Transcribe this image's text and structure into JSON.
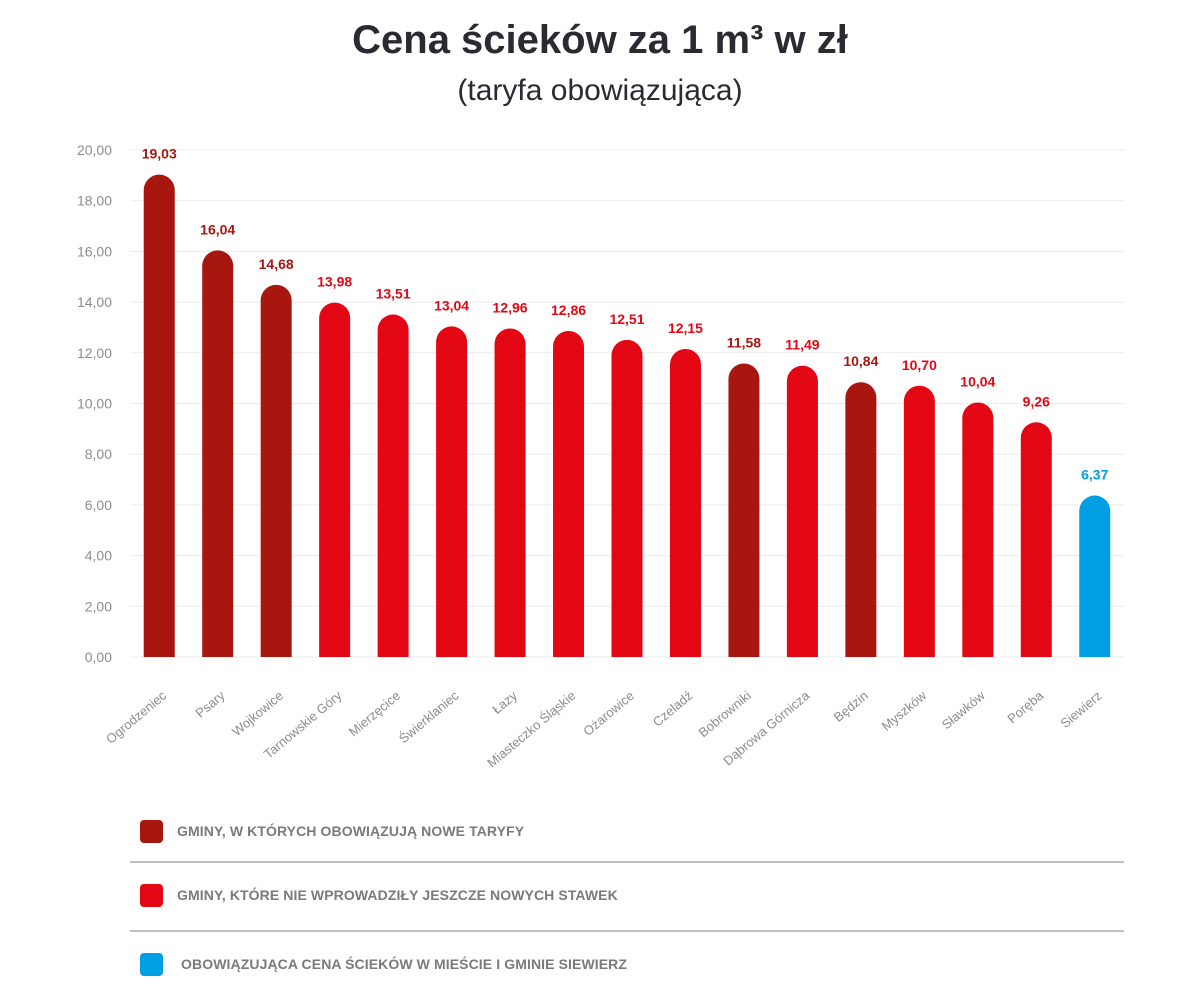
{
  "chart_data": {
    "type": "bar",
    "title": "Cena ścieków za 1 m³ w zł",
    "subtitle": "(taryfa obowiązująca)",
    "categories": [
      "Ogrodzeniec",
      "Psary",
      "Wojkowice",
      "Tarnowskie Góry",
      "Mierzęcice",
      "Świerklaniec",
      "Łazy",
      "Miasteczko Śląskie",
      "Ożarowice",
      "Czeladź",
      "Bobrowniki",
      "Dąbrowa Górnicza",
      "Będzin",
      "Myszków",
      "Sławków",
      "Poręba",
      "Siewierz"
    ],
    "values": [
      19.03,
      16.04,
      14.68,
      13.98,
      13.51,
      13.04,
      12.96,
      12.86,
      12.51,
      12.15,
      11.58,
      11.49,
      10.84,
      10.7,
      10.04,
      9.26,
      6.37
    ],
    "value_labels": [
      "19,03",
      "16,04",
      "14,68",
      "13,98",
      "13,51",
      "13,04",
      "12,96",
      "12,86",
      "12,51",
      "12,15",
      "11,58",
      "11,49",
      "10,84",
      "10,70",
      "10,04",
      "9,26",
      "6,37"
    ],
    "groups": [
      "new",
      "new",
      "new",
      "old",
      "old",
      "old",
      "old",
      "old",
      "old",
      "old",
      "new",
      "old",
      "new",
      "old",
      "old",
      "old",
      "siewierz"
    ],
    "ylim": [
      0,
      20
    ],
    "yticks": [
      "0,00",
      "2,00",
      "4,00",
      "6,00",
      "8,00",
      "10,00",
      "12,00",
      "14,00",
      "16,00",
      "18,00",
      "20,00"
    ],
    "grid": true,
    "legend_position": "bottom",
    "colors": {
      "new": "#a8170f",
      "old": "#e30613",
      "siewierz": "#009fe3",
      "axis_text": "#8c8c8c",
      "gridline": "#ececec"
    }
  },
  "legend": [
    {
      "label": "GMINY, W KTÓRYCH OBOWIĄZUJĄ NOWE TARYFY",
      "color": "#a8170f"
    },
    {
      "label": "GMINY, KTÓRE NIE WPROWADZIŁY JESZCZE NOWYCH STAWEK",
      "color": "#e30613"
    },
    {
      "label": "OBOWIĄZUJĄCA CENA ŚCIEKÓW W MIEŚCIE I GMINIE SIEWIERZ",
      "color": "#009fe3"
    }
  ]
}
